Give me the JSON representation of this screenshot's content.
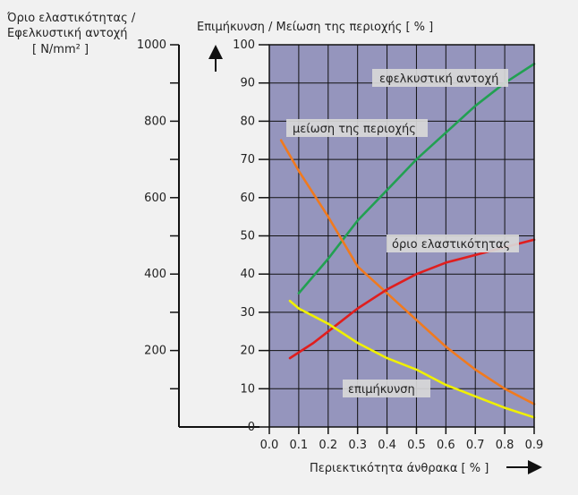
{
  "chart_data": {
    "type": "line",
    "left_axis_title_line1": "Όριο ελαστικότητας /",
    "left_axis_title_line2": "Εφελκυστική αντοχή",
    "left_axis_unit": "[ N/mm² ]",
    "right_axis_title": "Επιμήκυνση / Μείωση της περιοχής [ % ]",
    "xlabel": "Περιεκτικότητα άνθρακα [ % ]",
    "xlim": [
      0.0,
      0.9
    ],
    "ylim_percent": [
      0,
      100
    ],
    "ylim_stress": [
      0,
      1000
    ],
    "x_ticks": [
      "0.0",
      "0.1",
      "0.2",
      "0.3",
      "0.4",
      "0.5",
      "0.6",
      "0.7",
      "0.8",
      "0.9"
    ],
    "y_ticks_percent": [
      "0",
      "10",
      "20",
      "30",
      "40",
      "50",
      "60",
      "70",
      "80",
      "90",
      "100"
    ],
    "y_ticks_stress": [
      "200",
      "400",
      "600",
      "800",
      "1000"
    ],
    "grid": true,
    "colors": {
      "plot_bg": "#9595bd",
      "grid": "#111111",
      "tensile": "#22a052",
      "reduction": "#f07a1e",
      "yield": "#e01e1e",
      "elongation": "#f0f000"
    },
    "series": [
      {
        "name": "εφελκυστική αντοχή",
        "color": "#22a052",
        "x": [
          0.1,
          0.2,
          0.3,
          0.4,
          0.5,
          0.6,
          0.7,
          0.8,
          0.9
        ],
        "y": [
          35,
          44,
          54,
          62,
          70,
          77,
          84,
          90,
          95
        ]
      },
      {
        "name": "μείωση της περιοχής",
        "color": "#f07a1e",
        "x": [
          0.04,
          0.1,
          0.2,
          0.3,
          0.4,
          0.5,
          0.6,
          0.7,
          0.8,
          0.9
        ],
        "y": [
          75,
          67,
          55,
          42,
          35,
          28,
          21,
          15,
          10,
          6
        ]
      },
      {
        "name": "όριο ελαστικότητας",
        "color": "#e01e1e",
        "x": [
          0.07,
          0.15,
          0.2,
          0.3,
          0.4,
          0.5,
          0.6,
          0.7,
          0.8,
          0.9
        ],
        "y": [
          18,
          22,
          25,
          31,
          36,
          40,
          43,
          45,
          47,
          49
        ]
      },
      {
        "name": "επιμήκυνση",
        "color": "#f0f000",
        "x": [
          0.07,
          0.1,
          0.2,
          0.3,
          0.4,
          0.5,
          0.6,
          0.7,
          0.8,
          0.9
        ],
        "y": [
          33,
          31,
          27,
          22,
          18,
          15,
          11,
          8,
          5,
          2.5
        ]
      }
    ]
  }
}
